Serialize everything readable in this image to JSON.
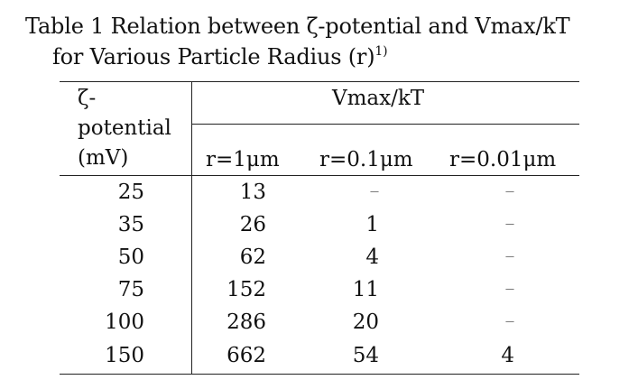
{
  "caption": {
    "line1": "Table 1   Relation between ζ-potential and Vmax/kT",
    "line2": "for Various Particle Radius (r)",
    "superscript": "1)"
  },
  "table": {
    "header": {
      "zeta_label_line1": "ζ-",
      "zeta_label_line2": "potential",
      "zeta_label_line3": "(mV)",
      "group_label": "Vmax/kT",
      "columns": [
        "r=1μm",
        "r=0.1μm",
        "r=0.01μm"
      ]
    },
    "rows": [
      {
        "zeta": "25",
        "r1": "13",
        "r01": "—",
        "r001": "—"
      },
      {
        "zeta": "35",
        "r1": "26",
        "r01": "1",
        "r001": "—"
      },
      {
        "zeta": "50",
        "r1": "62",
        "r01": "4",
        "r001": "—"
      },
      {
        "zeta": "75",
        "r1": "152",
        "r01": "11",
        "r001": "—"
      },
      {
        "zeta": "100",
        "r1": "286",
        "r01": "20",
        "r001": "—"
      },
      {
        "zeta": "150",
        "r1": "662",
        "r01": "54",
        "r001": "4"
      }
    ]
  }
}
